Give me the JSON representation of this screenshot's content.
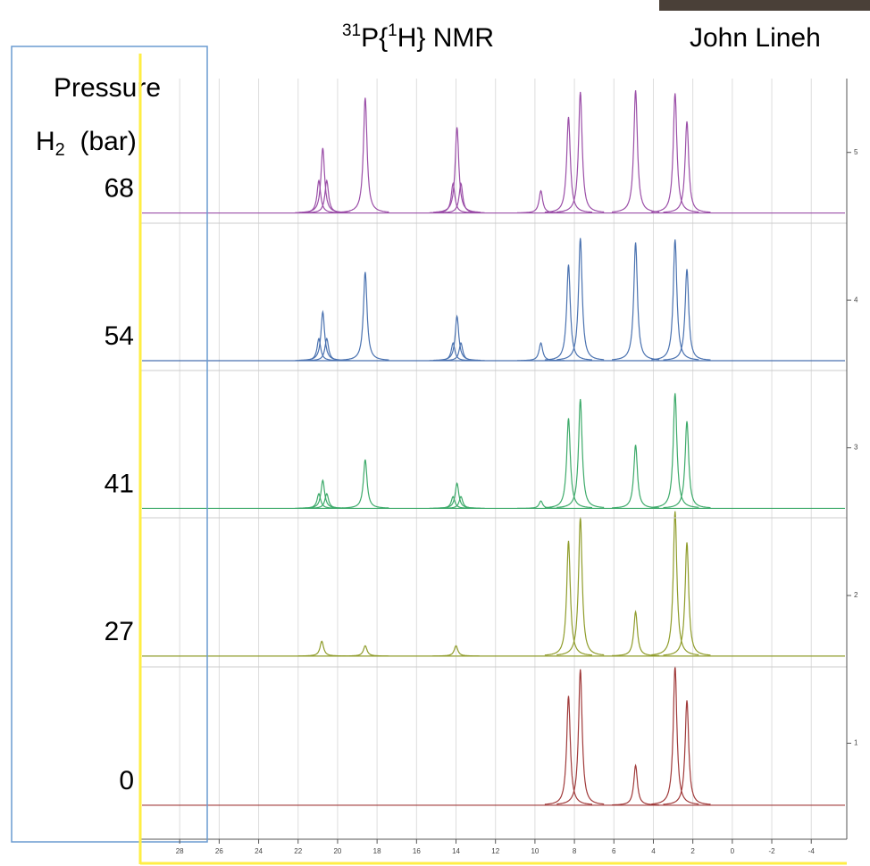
{
  "chart_data": {
    "type": "stacked-spectra",
    "title_parts": [
      "31",
      "P{",
      "1",
      "H} NMR"
    ],
    "author": "John Lineh",
    "y_label_parts": [
      "Pressure",
      "H",
      "2",
      "  (bar)"
    ],
    "xlim": [
      30,
      -5.8
    ],
    "xticks": [
      28,
      26,
      24,
      22,
      20,
      18,
      16,
      14,
      12,
      10,
      8,
      6,
      4,
      2,
      0,
      -2,
      -4
    ],
    "ylim": [
      0.35,
      5.5
    ],
    "yticks": [
      1,
      2,
      3,
      4,
      5
    ],
    "grid": true,
    "series": [
      {
        "name": "68",
        "color": "#9b4fa8",
        "offset": 4.59,
        "peaks_x": [
          20.95,
          20.75,
          20.55,
          18.6,
          14.15,
          13.95,
          13.75,
          9.7,
          8.3,
          7.7,
          4.9,
          2.9,
          2.3
        ],
        "values": [
          0.22,
          0.44,
          0.22,
          0.78,
          0.2,
          0.58,
          0.2,
          0.15,
          0.65,
          0.82,
          0.83,
          0.81,
          0.62
        ]
      },
      {
        "name": "54",
        "color": "#4a72b0",
        "offset": 3.59,
        "peaks_x": [
          20.95,
          20.75,
          20.55,
          18.6,
          14.15,
          13.95,
          13.75,
          9.7,
          8.3,
          7.7,
          4.9,
          2.9,
          2.3
        ],
        "values": [
          0.15,
          0.33,
          0.15,
          0.6,
          0.12,
          0.3,
          0.12,
          0.12,
          0.65,
          0.83,
          0.8,
          0.82,
          0.62
        ]
      },
      {
        "name": "41",
        "color": "#3daa6a",
        "offset": 2.59,
        "peaks_x": [
          20.95,
          20.75,
          20.55,
          18.6,
          14.15,
          13.95,
          13.75,
          9.7,
          8.3,
          7.7,
          4.9,
          2.9,
          2.3
        ],
        "values": [
          0.1,
          0.19,
          0.1,
          0.33,
          0.08,
          0.17,
          0.08,
          0.05,
          0.61,
          0.74,
          0.43,
          0.78,
          0.59
        ]
      },
      {
        "name": "27",
        "color": "#8f9c2a",
        "offset": 1.59,
        "peaks_x": [
          20.8,
          18.6,
          14,
          8.3,
          7.7,
          4.9,
          2.9,
          2.3
        ],
        "values": [
          0.1,
          0.07,
          0.07,
          0.78,
          0.94,
          0.3,
          0.98,
          0.77
        ]
      },
      {
        "name": "0",
        "color": "#a03a3a",
        "offset": 0.58,
        "peaks_x": [
          8.3,
          7.7,
          4.9,
          2.9,
          2.3
        ],
        "values": [
          0.74,
          0.92,
          0.27,
          0.94,
          0.71
        ]
      }
    ]
  }
}
